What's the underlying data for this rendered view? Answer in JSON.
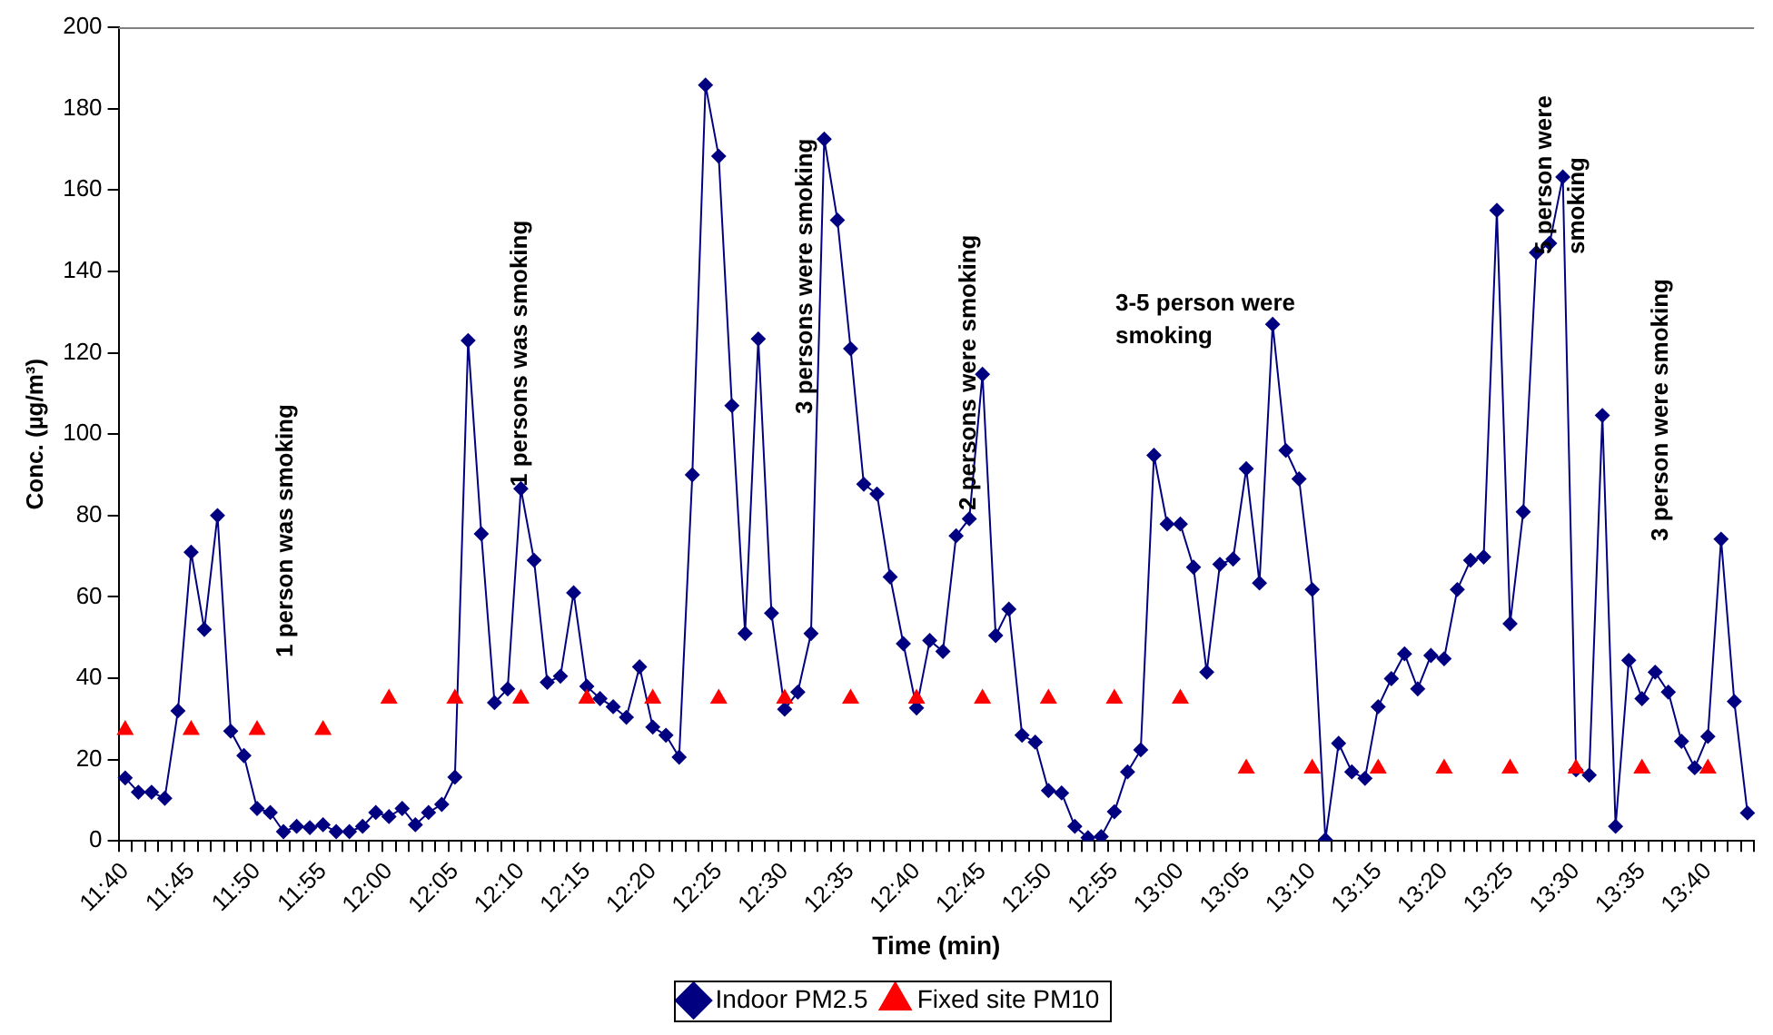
{
  "chart_data": {
    "type": "line",
    "xlabel": "Time (min)",
    "ylabel": "Conc. (µg/m³)",
    "categories": [
      "11:40",
      null,
      null,
      null,
      null,
      "11:45",
      null,
      null,
      null,
      null,
      "11:50",
      null,
      null,
      null,
      null,
      "11:55",
      null,
      null,
      null,
      null,
      "12:00",
      null,
      null,
      null,
      null,
      "12:05",
      null,
      null,
      null,
      null,
      "12:10",
      null,
      null,
      null,
      null,
      "12:15",
      null,
      null,
      null,
      null,
      "12:20",
      null,
      null,
      null,
      null,
      "12:25",
      null,
      null,
      null,
      null,
      "12:30",
      null,
      null,
      null,
      null,
      "12:35",
      null,
      null,
      null,
      null,
      "12:40",
      null,
      null,
      null,
      null,
      "12:45",
      null,
      null,
      null,
      null,
      "12:50",
      null,
      null,
      null,
      null,
      "12:55",
      null,
      null,
      null,
      null,
      "13:00",
      null,
      null,
      null,
      null,
      "13:05",
      null,
      null,
      null,
      null,
      "13:10",
      null,
      null,
      null,
      null,
      "13:15",
      null,
      null,
      null,
      null,
      "13:20",
      null,
      null,
      null,
      null,
      "13:25",
      null,
      null,
      null,
      null,
      "13:30",
      null,
      null,
      null,
      null,
      "13:35",
      null,
      null,
      null,
      null,
      "13:40",
      null,
      null,
      null
    ],
    "series": [
      {
        "name": "Indoor PM2.5",
        "type": "line",
        "color": "#000080",
        "marker": "diamond",
        "values": [
          15.5,
          12,
          12,
          10.5,
          32,
          71,
          52,
          80,
          27,
          21,
          8,
          7,
          2.3,
          3.6,
          3.3,
          4,
          2.3,
          2.3,
          3.6,
          7,
          6,
          8,
          4,
          7,
          9,
          15.7,
          123,
          75.5,
          34,
          37.4,
          86.6,
          69,
          39,
          40.5,
          61,
          38,
          35,
          33,
          30.4,
          42.8,
          28,
          26,
          20.6,
          90,
          185.8,
          168.3,
          107,
          51,
          123.4,
          56,
          32.4,
          36.6,
          51,
          172.5,
          152.6,
          121,
          87.7,
          85.3,
          64.9,
          48.5,
          32.7,
          49.3,
          46.6,
          75,
          79.2,
          114.7,
          50.5,
          57,
          26,
          24.3,
          12.4,
          11.8,
          3.6,
          0.8,
          1.1,
          7.2,
          17,
          22.4,
          94.8,
          77.9,
          77.9,
          67.3,
          41.5,
          68,
          69.3,
          91.5,
          63.4,
          127,
          96,
          89,
          61.8,
          0.3,
          24,
          17,
          15.4,
          33,
          39.9,
          46,
          37.4,
          45.6,
          44.8,
          61.8,
          69,
          69.8,
          155,
          53.4,
          80.9,
          144.6,
          146.9,
          163.2,
          17.5,
          16.2,
          104.6,
          3.6,
          44.4,
          35,
          41.5,
          36.6,
          24.5,
          18,
          25.7,
          74.2,
          34.3,
          6.9
        ]
      },
      {
        "name": "Fixed site PM10",
        "type": "scatter",
        "color": "#ff0000",
        "marker": "triangle",
        "values": [
          27.3,
          null,
          null,
          null,
          null,
          27.3,
          null,
          null,
          null,
          null,
          27.3,
          null,
          null,
          null,
          null,
          27.3,
          null,
          null,
          null,
          null,
          35,
          null,
          null,
          null,
          null,
          35,
          null,
          null,
          null,
          null,
          35,
          null,
          null,
          null,
          null,
          35,
          null,
          null,
          null,
          null,
          35,
          null,
          null,
          null,
          null,
          35,
          null,
          null,
          null,
          null,
          35,
          null,
          null,
          null,
          null,
          35,
          null,
          null,
          null,
          null,
          35,
          null,
          null,
          null,
          null,
          35,
          null,
          null,
          null,
          null,
          35,
          null,
          null,
          null,
          null,
          35,
          null,
          null,
          null,
          null,
          35,
          null,
          null,
          null,
          null,
          17.8,
          null,
          null,
          null,
          null,
          17.8,
          null,
          null,
          null,
          null,
          17.8,
          null,
          null,
          null,
          null,
          17.8,
          null,
          null,
          null,
          null,
          17.8,
          null,
          null,
          null,
          null,
          17.8,
          null,
          null,
          null,
          null,
          17.8,
          null,
          null,
          null,
          null,
          17.8,
          null,
          null,
          null
        ]
      }
    ],
    "ylim": [
      0,
      200
    ],
    "yticks": [
      0,
      20,
      40,
      60,
      80,
      100,
      120,
      140,
      160,
      180,
      200
    ],
    "grid": false,
    "legend": "bottom",
    "annotations": [
      "1 person was smoking",
      "1 persons was smoking",
      "3 persons were smoking",
      "2 persons were smoking",
      "3-5 person were smoking",
      "5 person were smoking",
      "3 person were smoking"
    ]
  }
}
